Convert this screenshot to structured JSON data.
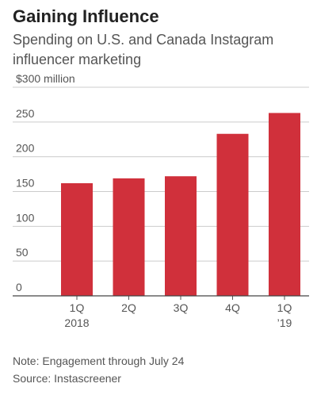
{
  "header": {
    "title": "Gaining Influence",
    "subtitle": "Spending on U.S. and Canada Instagram influencer marketing"
  },
  "chart_data": {
    "type": "bar",
    "categories": [
      "1Q",
      "2Q",
      "3Q",
      "4Q",
      "1Q"
    ],
    "category_sublabels": [
      "2018",
      "",
      "",
      "",
      "’19"
    ],
    "values": [
      162,
      169,
      172,
      233,
      263
    ],
    "ylim": [
      0,
      300
    ],
    "yticks": [
      0,
      50,
      100,
      150,
      200,
      250,
      300
    ],
    "ytick_labels": [
      "0",
      "50",
      "100",
      "150",
      "200",
      "250",
      "$300 million"
    ],
    "grid": true,
    "bar_color": "#d0303b"
  },
  "footer": {
    "note": "Note: Engagement through July 24",
    "source": "Source: Instascreener"
  }
}
